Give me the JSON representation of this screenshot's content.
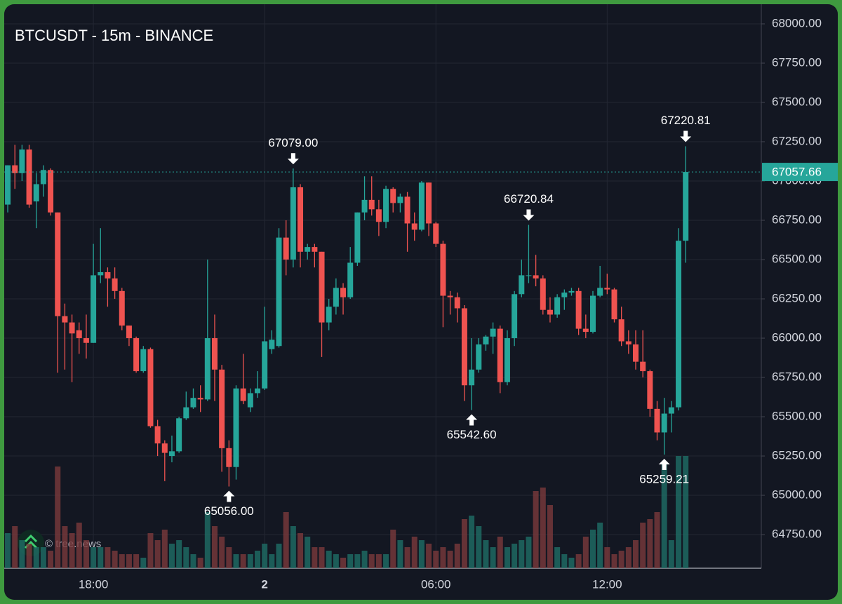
{
  "chart_data": {
    "type": "candlestick",
    "title": "BTCUSDT - 15m - BINANCE",
    "watermark": "© tree.news",
    "up_color": "#26a69a",
    "down_color": "#ef5350",
    "grid": true,
    "x": [
      0,
      1,
      2,
      3,
      4,
      5,
      6,
      7,
      8,
      9,
      10,
      11,
      12,
      13,
      14,
      15,
      16,
      17,
      18,
      19,
      20,
      21,
      22,
      23,
      24,
      25,
      26,
      27,
      28,
      29,
      30,
      31,
      32,
      33,
      34,
      35,
      36,
      37,
      38,
      39,
      40,
      41,
      42,
      43,
      44,
      45,
      46,
      47,
      48,
      49,
      50,
      51,
      52,
      53,
      54,
      55,
      56,
      57,
      58,
      59,
      60,
      61,
      62,
      63,
      64,
      65,
      66,
      67,
      68,
      69,
      70,
      71,
      72,
      73,
      74,
      75,
      76,
      77,
      78,
      79,
      80,
      81,
      82,
      83,
      84,
      85,
      86,
      87,
      88,
      89,
      90,
      91,
      92,
      93,
      94,
      95
    ],
    "open": [
      66850,
      67100,
      67050,
      67200,
      66870,
      66980,
      67070,
      66800,
      66140,
      66100,
      66050,
      66000,
      65970,
      66400,
      66420,
      66380,
      66300,
      66080,
      66000,
      65790,
      65930,
      65440,
      65330,
      65250,
      65280,
      65490,
      65560,
      65620,
      65610,
      66000,
      65800,
      65300,
      65180,
      65680,
      65560,
      65650,
      65680,
      65930,
      65950,
      66640,
      66500,
      66960,
      66550,
      66580,
      66550,
      66100,
      66200,
      66320,
      66260,
      66480,
      66800,
      66880,
      66820,
      66740,
      66950,
      66860,
      66900,
      66730,
      66690,
      66990,
      66730,
      66600,
      66270,
      66260,
      66190,
      65700,
      65800,
      65960,
      66010,
      66060,
      65720,
      66000,
      66280,
      66400,
      66400,
      66380,
      66180,
      66150,
      66260,
      66290,
      66300,
      66060,
      66040,
      66270,
      66320,
      66310,
      66120,
      65980,
      65960,
      65850,
      65790,
      65550,
      65400,
      65520,
      65560,
      66620
    ],
    "high": [
      67100,
      67230,
      67230,
      67230,
      67050,
      67100,
      67080,
      66800,
      66220,
      66150,
      66100,
      66150,
      66600,
      66700,
      66450,
      66450,
      66320,
      66080,
      66010,
      65950,
      65940,
      65480,
      65350,
      65380,
      65500,
      65660,
      65680,
      65700,
      66500,
      66150,
      65830,
      65350,
      65700,
      65900,
      65680,
      65790,
      66200,
      66050,
      66700,
      66750,
      67079,
      66980,
      66600,
      66600,
      66550,
      66250,
      66380,
      66350,
      66580,
      66800,
      67030,
      67030,
      66880,
      66970,
      66960,
      66920,
      66930,
      66800,
      67000,
      66990,
      66740,
      66620,
      66300,
      66290,
      66210,
      66000,
      66000,
      66020,
      66100,
      66080,
      66050,
      66300,
      66500,
      66720.84,
      66530,
      66400,
      66260,
      66280,
      66310,
      66320,
      66320,
      66150,
      66300,
      66460,
      66410,
      66320,
      66200,
      66050,
      66050,
      66050,
      65800,
      65600,
      65620,
      65600,
      66700,
      67220.81
    ],
    "low": [
      66800,
      66950,
      67000,
      66830,
      66700,
      66900,
      66780,
      65780,
      65800,
      65720,
      65900,
      65870,
      65970,
      66350,
      66200,
      66250,
      66050,
      65950,
      65780,
      65780,
      65430,
      65250,
      65090,
      65210,
      65270,
      65480,
      65550,
      65530,
      65600,
      65600,
      65150,
      65056,
      65100,
      65580,
      65530,
      65620,
      65670,
      65900,
      65940,
      66400,
      66450,
      66450,
      66500,
      66450,
      65880,
      66050,
      66150,
      66150,
      66250,
      66460,
      66750,
      66780,
      66650,
      66700,
      66800,
      66800,
      66550,
      66620,
      66680,
      66650,
      66580,
      66070,
      66150,
      66100,
      65600,
      65542.6,
      65780,
      65920,
      65900,
      65650,
      65700,
      65950,
      66260,
      66350,
      66330,
      66150,
      66100,
      66130,
      66180,
      66270,
      66020,
      66000,
      66030,
      66260,
      66280,
      66100,
      65950,
      65900,
      65800,
      65750,
      65500,
      65350,
      65259.21,
      65400,
      65540,
      66480
    ],
    "close": [
      67100,
      67050,
      67200,
      66850,
      66980,
      67070,
      66800,
      66140,
      66100,
      66030,
      66000,
      65970,
      66400,
      66420,
      66380,
      66300,
      66080,
      66000,
      65790,
      65930,
      65440,
      65330,
      65270,
      65280,
      65490,
      65560,
      65620,
      65610,
      66000,
      65800,
      65300,
      65180,
      65680,
      65600,
      65650,
      65680,
      65980,
      65990,
      66640,
      66500,
      66960,
      66550,
      66580,
      66550,
      66100,
      66200,
      66320,
      66260,
      66480,
      66800,
      66880,
      66820,
      66740,
      66950,
      66860,
      66900,
      66730,
      66690,
      66990,
      66730,
      66600,
      66270,
      66260,
      66190,
      65700,
      65800,
      65960,
      66010,
      66060,
      65720,
      66000,
      66280,
      66400,
      66400,
      66380,
      66180,
      66150,
      66260,
      66290,
      66300,
      66060,
      66040,
      66270,
      66320,
      66310,
      66120,
      65980,
      65960,
      65850,
      65790,
      65550,
      65400,
      65520,
      65560,
      66620,
      67057.66
    ],
    "volume": [
      50,
      60,
      40,
      35,
      30,
      30,
      25,
      145,
      60,
      50,
      65,
      40,
      30,
      30,
      30,
      25,
      20,
      20,
      20,
      15,
      50,
      40,
      55,
      35,
      40,
      30,
      20,
      15,
      80,
      60,
      45,
      30,
      20,
      20,
      20,
      25,
      35,
      20,
      35,
      80,
      60,
      50,
      45,
      30,
      30,
      25,
      20,
      15,
      20,
      20,
      25,
      20,
      20,
      20,
      55,
      40,
      30,
      45,
      40,
      35,
      25,
      30,
      25,
      35,
      70,
      75,
      60,
      40,
      30,
      45,
      30,
      35,
      40,
      45,
      110,
      115,
      90,
      30,
      20,
      15,
      20,
      45,
      55,
      65,
      30,
      20,
      25,
      30,
      40,
      65,
      70,
      80,
      150,
      40,
      160,
      160
    ],
    "xlim": [
      -0.3,
      105.6
    ],
    "xticks": [
      {
        "value": 12,
        "label": "18:00"
      },
      {
        "value": 36,
        "label": "2"
      },
      {
        "value": 60,
        "label": "06:00"
      },
      {
        "value": 84,
        "label": "12:00"
      }
    ],
    "ylim": [
      64536,
      68116
    ],
    "yticks": [
      {
        "value": 68000,
        "label": "68000.00"
      },
      {
        "value": 67750,
        "label": "67750.00"
      },
      {
        "value": 67500,
        "label": "67500.00"
      },
      {
        "value": 67250,
        "label": "67250.00"
      },
      {
        "value": 67000,
        "label": "67000.00"
      },
      {
        "value": 66750,
        "label": "66750.00"
      },
      {
        "value": 66500,
        "label": "66500.00"
      },
      {
        "value": 66250,
        "label": "66250.00"
      },
      {
        "value": 66000,
        "label": "66000.00"
      },
      {
        "value": 65750,
        "label": "65750.00"
      },
      {
        "value": 65500,
        "label": "65500.00"
      },
      {
        "value": 65250,
        "label": "65250.00"
      },
      {
        "value": 65000,
        "label": "65000.00"
      },
      {
        "value": 64750,
        "label": "64750.00"
      }
    ],
    "last_price": {
      "value": 67057.66,
      "label": "67057.66"
    },
    "annotations": [
      {
        "x": 31,
        "value": 65056,
        "label": "65056.00",
        "side": "below"
      },
      {
        "x": 40,
        "value": 67079,
        "label": "67079.00",
        "side": "above"
      },
      {
        "x": 65,
        "value": 65542.6,
        "label": "65542.60",
        "side": "below"
      },
      {
        "x": 73,
        "value": 66720.84,
        "label": "66720.84",
        "side": "above"
      },
      {
        "x": 92,
        "value": 65259.21,
        "label": "65259.21",
        "side": "below"
      },
      {
        "x": 95,
        "value": 67220.81,
        "label": "67220.81",
        "side": "above"
      }
    ]
  }
}
